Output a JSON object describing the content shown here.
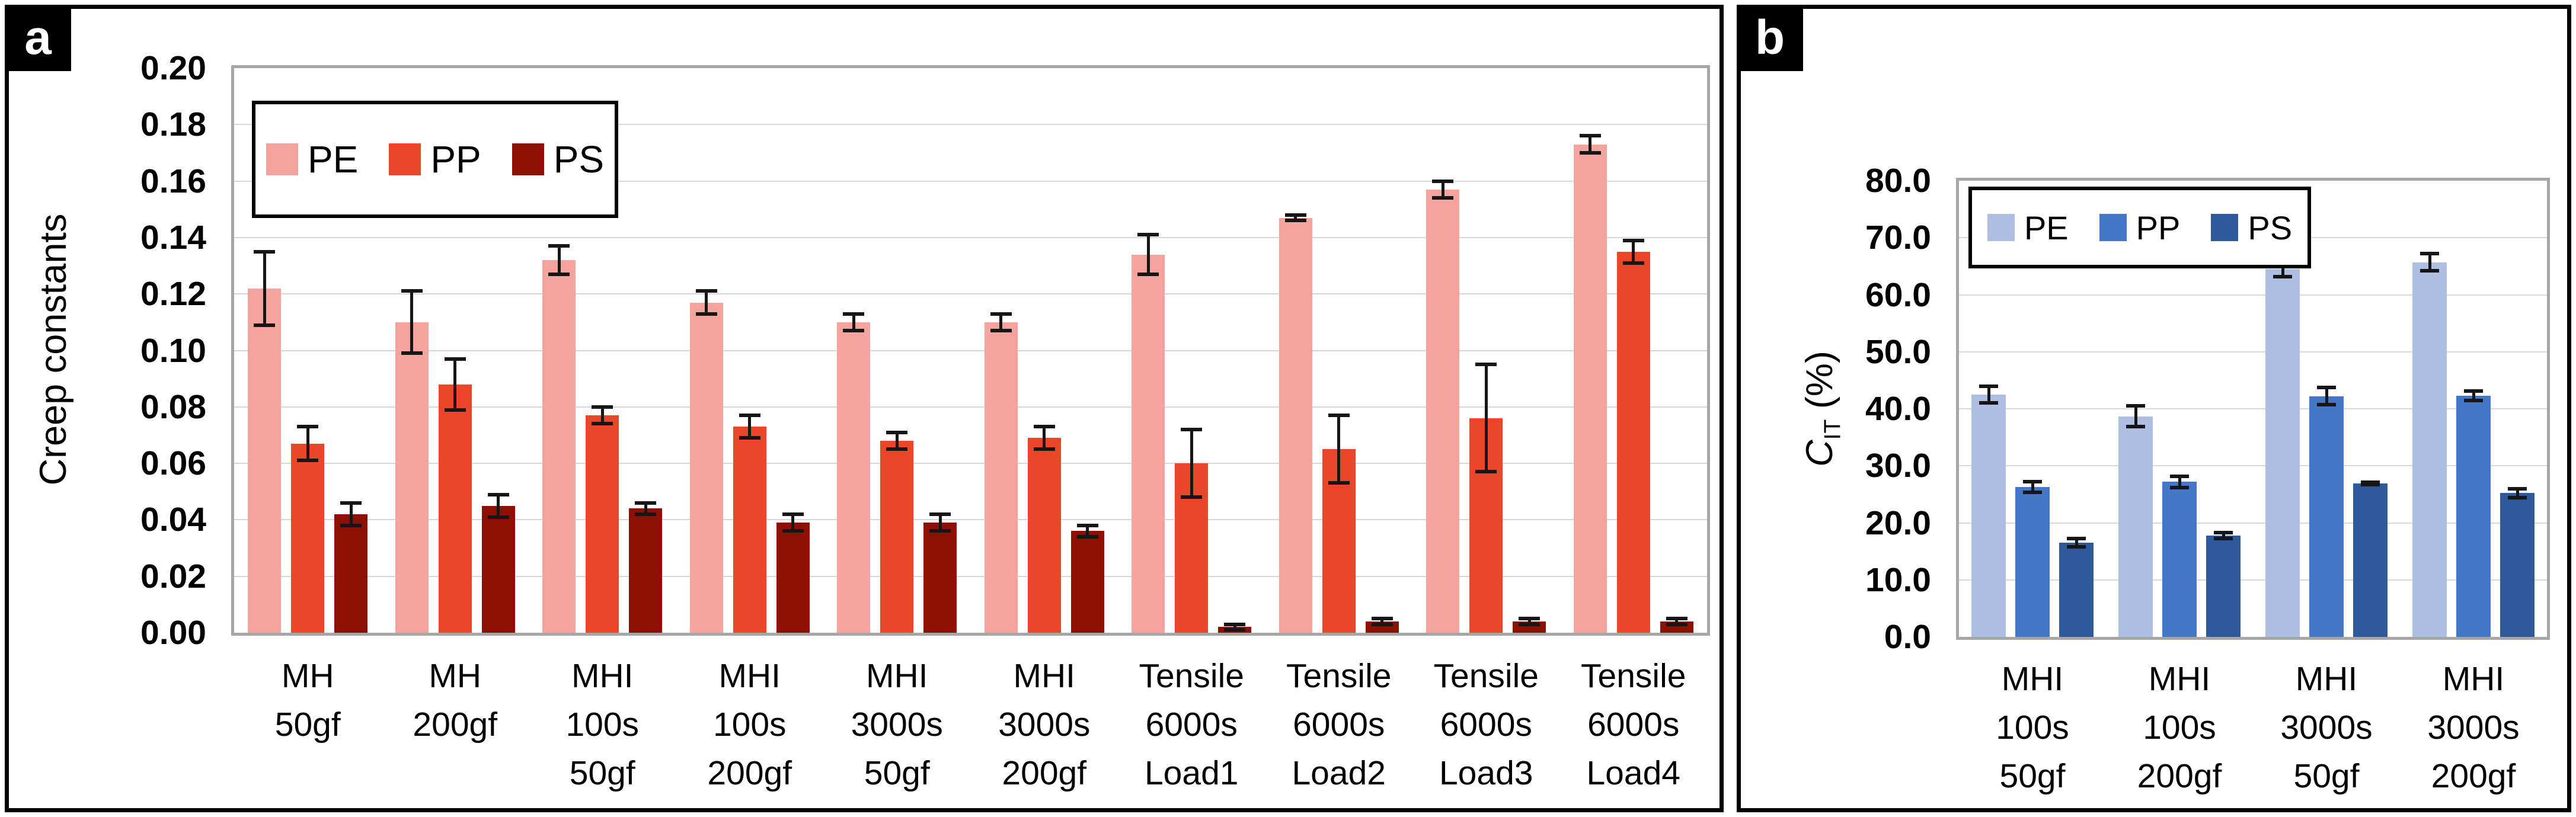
{
  "panel_a": {
    "badge": "a",
    "y_axis_title": "Creep constants"
  },
  "panel_b": {
    "badge": "b",
    "y_title_symbol": "C",
    "y_title_sub": "IT",
    "y_title_suffix": " (%)"
  },
  "chart_data": [
    {
      "type": "bar",
      "panel": "a",
      "title": "",
      "xlabel": "",
      "ylabel": "Creep constants",
      "ylim": [
        0,
        0.2
      ],
      "ytick_step": 0.02,
      "tick_decimals": 2,
      "grid": true,
      "legend_position": "top-left",
      "error_bars": true,
      "categories": [
        [
          "MH",
          "50gf"
        ],
        [
          "MH",
          "200gf"
        ],
        [
          "MHI",
          "100s",
          "50gf"
        ],
        [
          "MHI",
          "100s",
          "200gf"
        ],
        [
          "MHI",
          "3000s",
          "50gf"
        ],
        [
          "MHI",
          "3000s",
          "200gf"
        ],
        [
          "Tensile",
          "6000s",
          "Load1"
        ],
        [
          "Tensile",
          "6000s",
          "Load2"
        ],
        [
          "Tensile",
          "6000s",
          "Load3"
        ],
        [
          "Tensile",
          "6000s",
          "Load4"
        ]
      ],
      "series": [
        {
          "name": "PE",
          "color": "#F4A49C",
          "values": [
            0.122,
            0.11,
            0.132,
            0.117,
            0.11,
            0.11,
            0.134,
            0.147,
            0.157,
            0.173
          ],
          "errors": [
            0.013,
            0.011,
            0.005,
            0.004,
            0.003,
            0.003,
            0.007,
            0.001,
            0.003,
            0.003
          ]
        },
        {
          "name": "PP",
          "color": "#EA4628",
          "values": [
            0.067,
            0.088,
            0.077,
            0.073,
            0.068,
            0.069,
            0.06,
            0.065,
            0.076,
            0.135
          ],
          "errors": [
            0.006,
            0.009,
            0.003,
            0.004,
            0.003,
            0.004,
            0.012,
            0.012,
            0.019,
            0.004
          ]
        },
        {
          "name": "PS",
          "color": "#8E1004",
          "values": [
            0.042,
            0.045,
            0.044,
            0.039,
            0.039,
            0.036,
            0.002,
            0.004,
            0.004,
            0.004
          ],
          "errors": [
            0.004,
            0.004,
            0.002,
            0.003,
            0.003,
            0.002,
            0.001,
            0.001,
            0.001,
            0.001
          ]
        }
      ]
    },
    {
      "type": "bar",
      "panel": "b",
      "title": "",
      "xlabel": "",
      "ylabel": "C_IT (%)",
      "ylim": [
        0,
        80
      ],
      "ytick_step": 10,
      "tick_decimals": 1,
      "grid": true,
      "legend_position": "top-left",
      "error_bars": true,
      "categories": [
        [
          "MHI",
          "100s",
          "50gf"
        ],
        [
          "MHI",
          "100s",
          "200gf"
        ],
        [
          "MHI",
          "3000s",
          "50gf"
        ],
        [
          "MHI",
          "3000s",
          "200gf"
        ]
      ],
      "series": [
        {
          "name": "PE",
          "color": "#AFBFE4",
          "values": [
            42.5,
            38.7,
            64.5,
            65.7
          ],
          "errors": [
            1.5,
            1.8,
            1.3,
            1.5
          ]
        },
        {
          "name": "PP",
          "color": "#4577C8",
          "values": [
            26.3,
            27.2,
            42.2,
            42.3
          ],
          "errors": [
            0.9,
            1.0,
            1.5,
            0.8
          ]
        },
        {
          "name": "PS",
          "color": "#30599B",
          "values": [
            16.5,
            17.8,
            26.9,
            25.2
          ],
          "errors": [
            0.7,
            0.5,
            0.2,
            0.8
          ]
        }
      ]
    }
  ]
}
